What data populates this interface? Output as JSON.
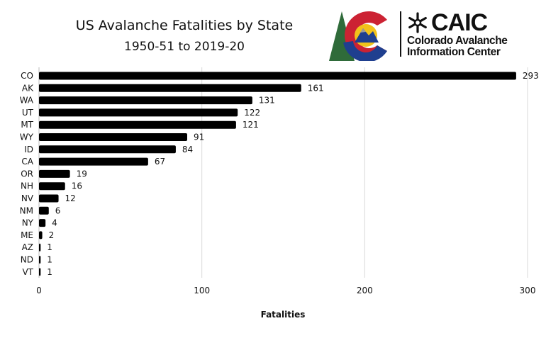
{
  "header": {
    "title": "US Avalanche Fatalities by State",
    "subtitle": "1950-51 to 2019-20"
  },
  "logo": {
    "acronym": "CAIC",
    "name_line1": "Colorado Avalanche",
    "name_line2": "Information Center",
    "icon": "snowflake-icon",
    "colors": {
      "red": "#cc2233",
      "blue": "#1f3f8f",
      "yellow": "#f2c21b",
      "green": "#2f6b3a",
      "gray": "#9a9a9a"
    }
  },
  "chart_data": {
    "type": "bar",
    "orientation": "horizontal",
    "categories": [
      "CO",
      "AK",
      "WA",
      "UT",
      "MT",
      "WY",
      "ID",
      "CA",
      "OR",
      "NH",
      "NV",
      "NM",
      "NY",
      "ME",
      "AZ",
      "ND",
      "VT"
    ],
    "values": [
      293,
      161,
      131,
      122,
      121,
      91,
      84,
      67,
      19,
      16,
      12,
      6,
      4,
      2,
      1,
      1,
      1
    ],
    "data_labels": [
      "293",
      "161",
      "131",
      "122",
      "121",
      "91",
      "84",
      "67",
      "19",
      "16",
      "12",
      "6",
      "4",
      "2",
      "1",
      "1",
      "1"
    ],
    "xlabel": "Fatalities",
    "ylabel": "",
    "xlim": [
      0,
      300
    ],
    "xticks": [
      0,
      100,
      200,
      300
    ],
    "xtick_labels": [
      "0",
      "100",
      "200",
      "300"
    ],
    "grid": true,
    "bar_color": "#000000",
    "grid_color": "#d9d9d9"
  }
}
